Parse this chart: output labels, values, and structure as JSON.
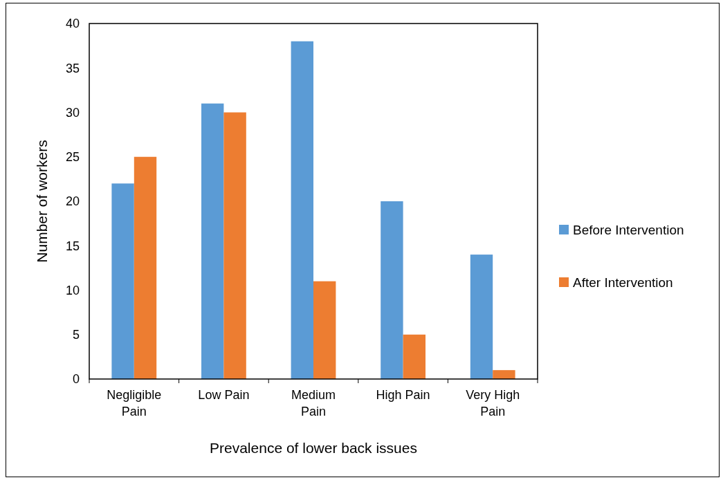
{
  "chart_data": {
    "type": "bar",
    "xlabel": "Prevalence of lower back issues",
    "ylabel": "Number of workers",
    "categories": [
      "Negligible Pain",
      "Low Pain",
      "Medium Pain",
      "High Pain",
      "Very High Pain"
    ],
    "series": [
      {
        "name": "Before Intervention",
        "color": "#5b9bd5",
        "values": [
          22,
          31,
          38,
          20,
          14
        ]
      },
      {
        "name": "After Intervention",
        "color": "#ed7d31",
        "values": [
          25,
          30,
          11,
          5,
          1
        ]
      }
    ],
    "ylim": [
      0,
      40
    ],
    "yticks": [
      0,
      5,
      10,
      15,
      20,
      25,
      30,
      35,
      40
    ],
    "grid": false,
    "legend": "right"
  }
}
